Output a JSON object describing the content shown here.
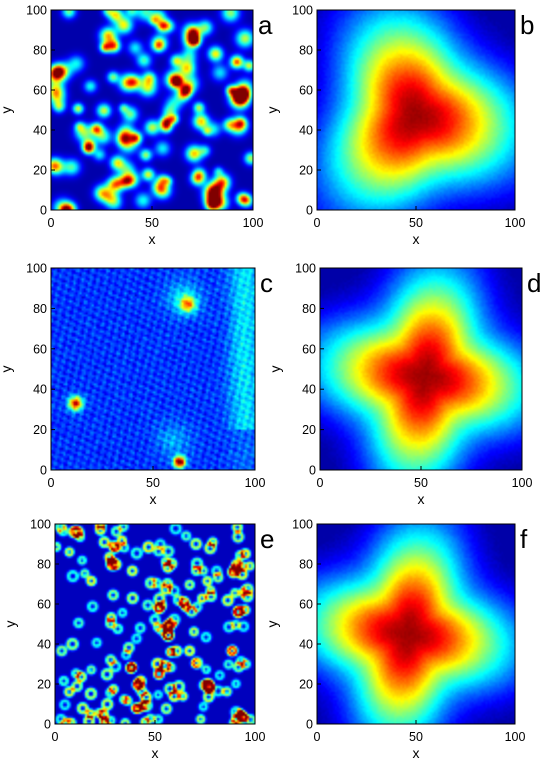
{
  "chart_data": [
    {
      "type": "heatmap",
      "panel_label": "a",
      "pattern": "clusters",
      "seed": 11,
      "xlabel": "x",
      "ylabel": "y",
      "xlim": [
        0,
        100
      ],
      "ylim": [
        0,
        100
      ],
      "xticks": [
        0,
        50,
        100
      ],
      "yticks": [
        0,
        20,
        40,
        60,
        80,
        100
      ],
      "colormap": "jet",
      "grid": false,
      "legend": "none"
    },
    {
      "type": "heatmap",
      "panel_label": "b",
      "pattern": "diffuse-center",
      "center": [
        50,
        47
      ],
      "lobes": 3,
      "xlabel": "x",
      "ylabel": "y",
      "xlim": [
        0,
        100
      ],
      "ylim": [
        0,
        100
      ],
      "xticks": [
        0,
        50,
        100
      ],
      "yticks": [
        0,
        20,
        40,
        60,
        80,
        100
      ],
      "colormap": "jet",
      "grid": false,
      "legend": "none"
    },
    {
      "type": "heatmap",
      "panel_label": "c",
      "pattern": "sparse-hotspots",
      "hotspots": [
        [
          62,
          4
        ],
        [
          11,
          32
        ],
        [
          65,
          83
        ]
      ],
      "xlabel": "x",
      "ylabel": "y",
      "xlim": [
        0,
        100
      ],
      "ylim": [
        0,
        100
      ],
      "xticks": [
        0,
        50,
        100
      ],
      "yticks": [
        0,
        20,
        40,
        60,
        80,
        100
      ],
      "colormap": "jet",
      "grid": false,
      "legend": "none"
    },
    {
      "type": "heatmap",
      "panel_label": "d",
      "pattern": "diffuse-center",
      "center": [
        52,
        46
      ],
      "lobes": 4,
      "xlabel": "x",
      "ylabel": "y",
      "xlim": [
        0,
        100
      ],
      "ylim": [
        0,
        100
      ],
      "xticks": [
        0,
        50,
        100
      ],
      "yticks": [
        0,
        20,
        40,
        60,
        80,
        100
      ],
      "colormap": "jet",
      "grid": false,
      "legend": "none"
    },
    {
      "type": "heatmap",
      "panel_label": "e",
      "pattern": "dense-rings",
      "seed": 29,
      "xlabel": "x",
      "ylabel": "y",
      "xlim": [
        0,
        100
      ],
      "ylim": [
        0,
        100
      ],
      "xticks": [
        0,
        50,
        100
      ],
      "yticks": [
        0,
        20,
        40,
        60,
        80,
        100
      ],
      "colormap": "jet",
      "grid": false,
      "legend": "none"
    },
    {
      "type": "heatmap",
      "panel_label": "f",
      "pattern": "diffuse-center",
      "center": [
        46,
        45
      ],
      "lobes": 4,
      "xlabel": "x",
      "ylabel": "y",
      "xlim": [
        0,
        100
      ],
      "ylim": [
        0,
        100
      ],
      "xticks": [
        0,
        50,
        100
      ],
      "yticks": [
        0,
        20,
        40,
        60,
        80,
        100
      ],
      "colormap": "jet",
      "grid": false,
      "legend": "none"
    }
  ]
}
